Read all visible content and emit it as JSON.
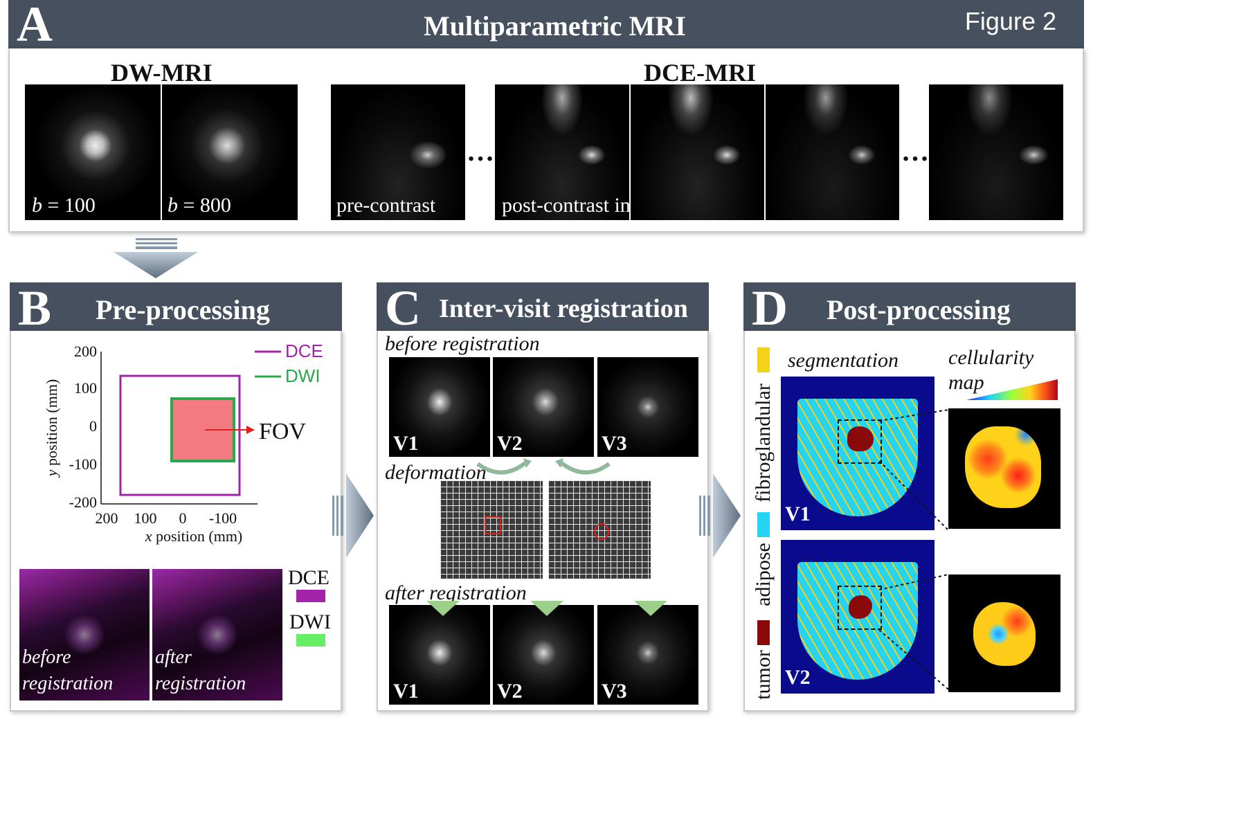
{
  "figure_label": "Figure 2",
  "panel_a": {
    "letter": "A",
    "title": "Multiparametric MRI",
    "dw_title": "DW-MRI",
    "dce_title": "DCE-MRI",
    "b_var": "b",
    "b100": " = 100",
    "b800": " = 800",
    "pre_contrast": "pre-contrast",
    "post_contrast": "post-contrast images",
    "ellipsis": "…"
  },
  "panel_b": {
    "letter": "B",
    "title": "Pre-processing",
    "legend_dce": "DCE",
    "legend_dwi": "DWI",
    "fov_label": "FOV",
    "y_ticks": [
      "200",
      "100",
      "0",
      "-100",
      "-200"
    ],
    "x_ticks": [
      "200",
      "100",
      "0",
      "-100"
    ],
    "ylabel_var": "y",
    "ylabel_rest": " position (mm)",
    "xlabel_var": "x",
    "xlabel_rest": " position (mm)",
    "overlay_before_1": "before",
    "overlay_before_2": "registration",
    "overlay_after_1": "after",
    "overlay_after_2": "registration",
    "key_dce": "DCE",
    "key_dwi": "DWI",
    "colors": {
      "dce": "#a023a8",
      "dwi": "#2aa84a",
      "fov_fill": "#f47a82",
      "arrow": "#e0201c"
    }
  },
  "panel_c": {
    "letter": "C",
    "title": "Inter-visit registration",
    "before_label": "before registration",
    "deformation_label": "deformation",
    "after_label": "after registration",
    "visits": [
      "V1",
      "V2",
      "V3"
    ]
  },
  "panel_d": {
    "letter": "D",
    "title": "Post-processing",
    "segmentation_label": "segmentation",
    "cellularity_1": "cellularity",
    "cellularity_2": "map",
    "legend": [
      {
        "label": "fibroglandular",
        "color": "#f5d21a"
      },
      {
        "label": "adipose",
        "color": "#25d4f0"
      },
      {
        "label": "tumor",
        "color": "#8a0a0a"
      }
    ],
    "visits": [
      "V1",
      "V2"
    ]
  }
}
